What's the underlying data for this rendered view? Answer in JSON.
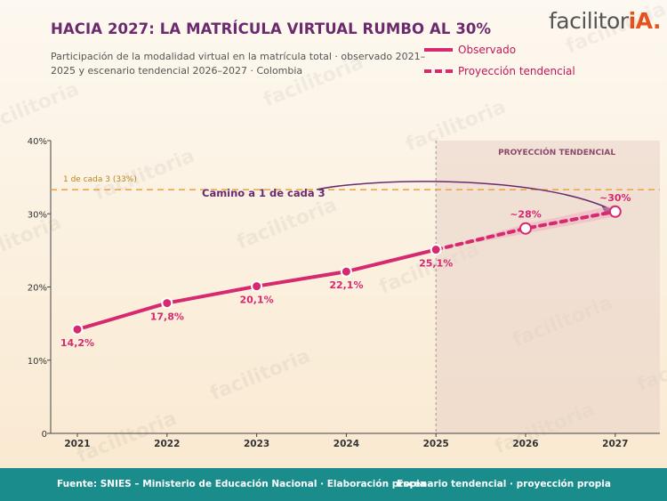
{
  "header": {
    "title": "HACIA 2027: LA MATRÍCULA VIRTUAL RUMBO AL 30%",
    "subtitle": "Participación de la modalidad virtual en la matrícula total · observado 2021–2025 y escenario tendencial 2026–2027 · Colombia",
    "brand_main": "facilitor",
    "brand_accent": "iA."
  },
  "watermark": "facilitoria",
  "legend": {
    "observed": "Observado",
    "projected": "Proyección tendencial"
  },
  "chart_data": {
    "type": "line",
    "categories": [
      "2021",
      "2022",
      "2023",
      "2024",
      "2025",
      "2026",
      "2027"
    ],
    "ylim": [
      0,
      40
    ],
    "yticks": [
      0,
      10,
      20,
      30,
      40
    ],
    "ytick_labels": [
      "0",
      "10%",
      "20%",
      "30%",
      "40%"
    ],
    "grid": false,
    "series": [
      {
        "name": "Observado",
        "style": "solid",
        "values": [
          14.2,
          17.8,
          20.1,
          22.1,
          25.1,
          null,
          null
        ],
        "labels": [
          "14,2%",
          "17,8%",
          "20,1%",
          "22,1%",
          "25,1%",
          "",
          ""
        ]
      },
      {
        "name": "Proyección tendencial",
        "style": "dashed",
        "values": [
          null,
          null,
          null,
          null,
          25.1,
          28,
          30.3
        ],
        "labels": [
          "",
          "",
          "",
          "",
          "",
          "~28%",
          "~30%"
        ]
      }
    ],
    "uncertainty_band": {
      "x": [
        "2025",
        "2026",
        "2027"
      ],
      "low": [
        25.1,
        27.3,
        29.6
      ],
      "high": [
        25.1,
        28.6,
        31.2
      ]
    },
    "reference_line": {
      "value": 33.3,
      "label": "1 de cada 3 (33%)"
    },
    "projection_region": {
      "start": "2025",
      "label": "PROYECCIÓN TENDENCIAL"
    },
    "annotation": {
      "text": "Camino a 1 de cada 3",
      "target": "2027"
    },
    "colors": {
      "line": "#d6296f",
      "band": "#f0a8bc",
      "reference": "#e8a33d",
      "reference_text": "#b8861e",
      "annotation": "#6b2a6d",
      "region_fill": "#e8d2c8",
      "region_text": "#8c4a6a",
      "footer": "#1b8c8c"
    }
  },
  "footer": {
    "source": "Fuente: SNIES – Ministerio de Educación Nacional · Elaboración propia",
    "note": "Escenario tendencial · proyección propia"
  }
}
